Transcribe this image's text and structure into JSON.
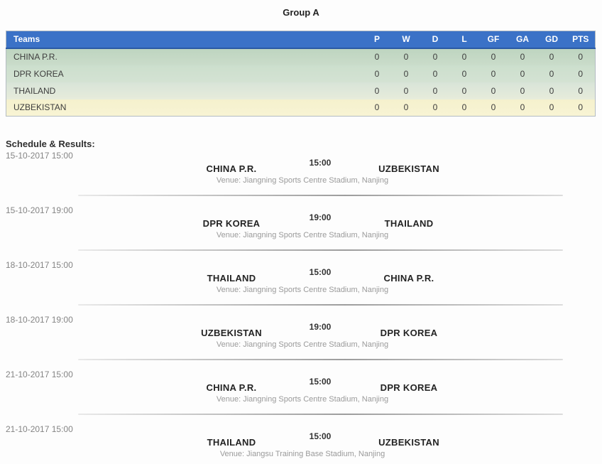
{
  "page": {
    "title": "Group A"
  },
  "colors": {
    "header_bg": "#3b72c7",
    "header_text": "#ffffff",
    "row_green_1": "#c2d8c3",
    "row_green_2": "#cfe0d0",
    "row_green_3": "#dce7da",
    "row_yellow": "#f6f2d0"
  },
  "standings": {
    "columns": [
      "Teams",
      "P",
      "W",
      "D",
      "L",
      "GF",
      "GA",
      "GD",
      "PTS"
    ],
    "rows": [
      [
        "CHINA P.R.",
        "0",
        "0",
        "0",
        "0",
        "0",
        "0",
        "0",
        "0"
      ],
      [
        "DPR KOREA",
        "0",
        "0",
        "0",
        "0",
        "0",
        "0",
        "0",
        "0"
      ],
      [
        "THAILAND",
        "0",
        "0",
        "0",
        "0",
        "0",
        "0",
        "0",
        "0"
      ],
      [
        "UZBEKISTAN",
        "0",
        "0",
        "0",
        "0",
        "0",
        "0",
        "0",
        "0"
      ]
    ]
  },
  "schedule": {
    "heading": "Schedule & Results:",
    "matches": [
      {
        "datetime": "15-10-2017 15:00",
        "home": "CHINA P.R.",
        "time": "15:00",
        "away": "UZBEKISTAN",
        "venue": "Venue: Jiangning Sports Centre Stadium, Nanjing"
      },
      {
        "datetime": "15-10-2017 19:00",
        "home": "DPR KOREA",
        "time": "19:00",
        "away": "THAILAND",
        "venue": "Venue: Jiangning Sports Centre Stadium, Nanjing"
      },
      {
        "datetime": "18-10-2017 15:00",
        "home": "THAILAND",
        "time": "15:00",
        "away": "CHINA P.R.",
        "venue": "Venue: Jiangning Sports Centre Stadium, Nanjing"
      },
      {
        "datetime": "18-10-2017 19:00",
        "home": "UZBEKISTAN",
        "time": "19:00",
        "away": "DPR KOREA",
        "venue": "Venue: Jiangning Sports Centre Stadium, Nanjing"
      },
      {
        "datetime": "21-10-2017 15:00",
        "home": "CHINA P.R.",
        "time": "15:00",
        "away": "DPR KOREA",
        "venue": "Venue: Jiangning Sports Centre Stadium, Nanjing"
      },
      {
        "datetime": "21-10-2017 15:00",
        "home": "THAILAND",
        "time": "15:00",
        "away": "UZBEKISTAN",
        "venue": "Venue: Jiangsu Training Base Stadium, Nanjing"
      }
    ]
  }
}
